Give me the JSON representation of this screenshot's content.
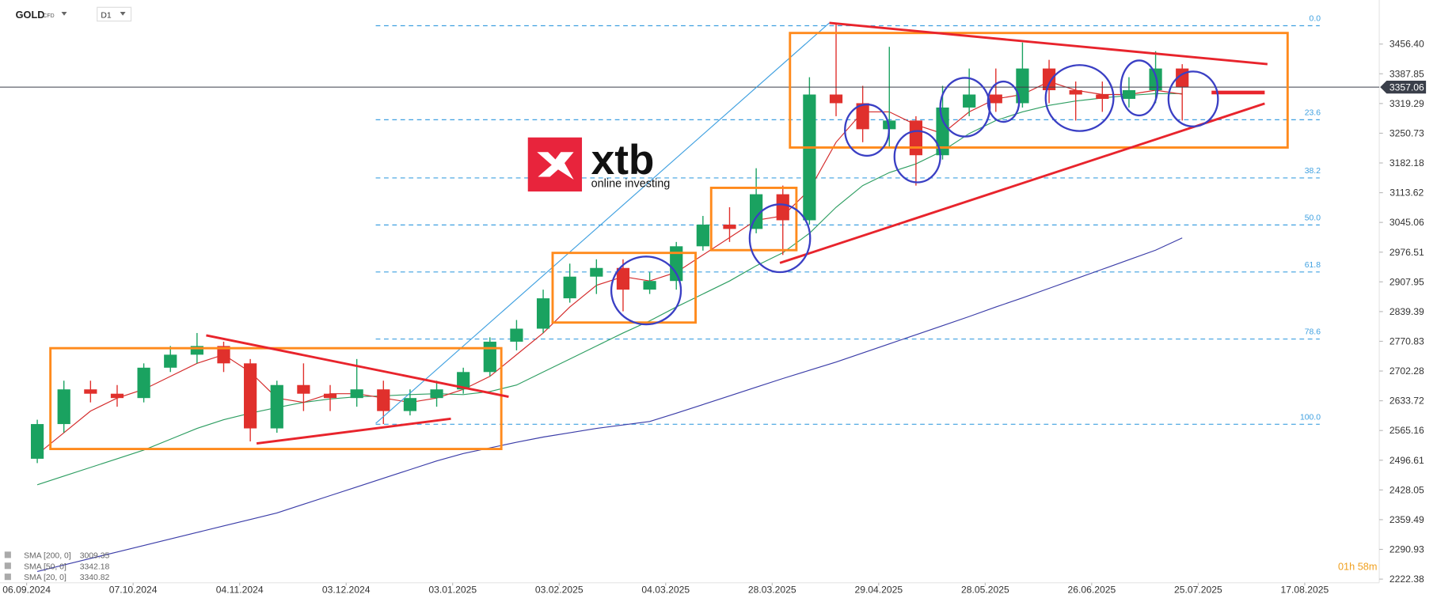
{
  "chart_data": {
    "type": "candlestick",
    "instrument": "GOLD",
    "instrument_type": "CFD",
    "timeframe": "D1",
    "brand": "xtb",
    "brand_tagline": "online investing",
    "countdown": "01h 58m",
    "x": [
      2,
      7,
      12,
      17,
      22,
      27,
      32,
      37,
      42,
      47,
      52,
      57,
      62,
      67,
      72,
      77,
      82,
      87,
      92,
      97,
      102,
      107,
      112,
      117,
      122,
      127,
      132,
      137,
      142,
      147,
      152,
      157,
      162,
      167,
      172,
      177,
      182,
      187,
      192,
      197,
      202,
      207,
      212,
      217
    ],
    "open": [
      2500,
      2580,
      2660,
      2650,
      2640,
      2710,
      2740,
      2760,
      2720,
      2570,
      2670,
      2650,
      2640,
      2660,
      2610,
      2640,
      2660,
      2700,
      2770,
      2800,
      2870,
      2920,
      2940,
      2890,
      2910,
      2990,
      3040,
      3030,
      3110,
      3050,
      3340,
      3320,
      3260,
      3280,
      3200,
      3310,
      3340,
      3320,
      3400,
      3350,
      3340,
      3330,
      3350,
      3400
    ],
    "high": [
      2590,
      2680,
      2680,
      2670,
      2720,
      2760,
      2790,
      2770,
      2730,
      2680,
      2720,
      2670,
      2730,
      2680,
      2660,
      2680,
      2710,
      2780,
      2820,
      2890,
      2950,
      2960,
      2960,
      2930,
      3000,
      3060,
      3080,
      3170,
      3130,
      3380,
      3505,
      3360,
      3450,
      3290,
      3360,
      3400,
      3400,
      3460,
      3420,
      3370,
      3370,
      3380,
      3440,
      3410
    ],
    "low": [
      2490,
      2560,
      2630,
      2620,
      2630,
      2700,
      2720,
      2700,
      2540,
      2560,
      2610,
      2610,
      2620,
      2580,
      2600,
      2620,
      2650,
      2690,
      2750,
      2790,
      2860,
      2880,
      2840,
      2880,
      2890,
      2980,
      3000,
      3020,
      2970,
      3040,
      3290,
      3230,
      3220,
      3130,
      3190,
      3290,
      3300,
      3310,
      3320,
      3280,
      3300,
      3310,
      3320,
      3280
    ],
    "close": [
      2580,
      2660,
      2650,
      2640,
      2710,
      2740,
      2760,
      2720,
      2570,
      2670,
      2650,
      2640,
      2660,
      2610,
      2640,
      2660,
      2700,
      2770,
      2800,
      2870,
      2920,
      2940,
      2890,
      2910,
      2990,
      3040,
      3030,
      3110,
      3050,
      3340,
      3320,
      3260,
      3280,
      3200,
      3310,
      3340,
      3320,
      3400,
      3350,
      3340,
      3330,
      3350,
      3400,
      3357.06
    ],
    "up_color": "#1aa260",
    "down_color": "#e0302c",
    "series": [
      {
        "name": "SMA [200, 0]",
        "color": "#3b3da8",
        "values": [
          2240,
          2255,
          2270,
          2285,
          2300,
          2315,
          2330,
          2345,
          2360,
          2375,
          2395,
          2415,
          2435,
          2455,
          2475,
          2495,
          2512,
          2525,
          2538,
          2550,
          2560,
          2570,
          2578,
          2586,
          2605,
          2625,
          2645,
          2665,
          2685,
          2704,
          2723,
          2744,
          2765,
          2786,
          2807,
          2828,
          2850,
          2871,
          2893,
          2915,
          2937,
          2959,
          2981,
          3009.35
        ]
      },
      {
        "name": "SMA [50, 0]",
        "color": "#2e9e62",
        "values": [
          2440,
          2460,
          2480,
          2500,
          2520,
          2545,
          2570,
          2590,
          2605,
          2618,
          2630,
          2638,
          2643,
          2645,
          2648,
          2650,
          2648,
          2655,
          2670,
          2700,
          2730,
          2760,
          2790,
          2818,
          2850,
          2880,
          2910,
          2945,
          2975,
          3020,
          3080,
          3130,
          3160,
          3180,
          3210,
          3250,
          3280,
          3300,
          3315,
          3325,
          3332,
          3338,
          3342,
          3342.18
        ]
      },
      {
        "name": "SMA [20, 0]",
        "color": "#d42a2a",
        "values": [
          2510,
          2560,
          2610,
          2640,
          2660,
          2690,
          2720,
          2740,
          2700,
          2640,
          2630,
          2650,
          2650,
          2640,
          2630,
          2640,
          2660,
          2690,
          2740,
          2790,
          2850,
          2900,
          2920,
          2910,
          2930,
          2970,
          3010,
          3050,
          3060,
          3120,
          3230,
          3300,
          3300,
          3270,
          3250,
          3300,
          3330,
          3340,
          3370,
          3350,
          3340,
          3340,
          3350,
          3340.82
        ]
      }
    ],
    "fib_levels": [
      {
        "label": "0.0",
        "value": 3498.7
      },
      {
        "label": "23.6",
        "value": 3281.8
      },
      {
        "label": "38.2",
        "value": 3147.6
      },
      {
        "label": "50.0",
        "value": 3039.2
      },
      {
        "label": "61.8",
        "value": 2930.7
      },
      {
        "label": "78.6",
        "value": 2776.2
      },
      {
        "label": "100.0",
        "value": 2579.6
      }
    ],
    "xlim": [
      -5,
      254
    ],
    "xticks": [
      {
        "value": 0,
        "label": "06.09.2024"
      },
      {
        "value": 20,
        "label": "07.10.2024"
      },
      {
        "value": 40,
        "label": "04.11.2024"
      },
      {
        "value": 60,
        "label": "03.12.2024"
      },
      {
        "value": 80,
        "label": "03.01.2025"
      },
      {
        "value": 100,
        "label": "03.02.2025"
      },
      {
        "value": 120,
        "label": "04.03.2025"
      },
      {
        "value": 140,
        "label": "28.03.2025"
      },
      {
        "value": 160,
        "label": "29.04.2025"
      },
      {
        "value": 180,
        "label": "28.05.2025"
      },
      {
        "value": 200,
        "label": "26.06.2025"
      },
      {
        "value": 220,
        "label": "25.07.2025"
      },
      {
        "value": 240,
        "label": "17.08.2025"
      }
    ],
    "ylim": [
      2214,
      3558
    ],
    "yticks": [
      {
        "value": 3456.4,
        "label": "3456.40"
      },
      3387.85,
      3319.29,
      3250.73,
      3182.18,
      3113.62,
      3045.06,
      2976.51,
      2907.95,
      2839.39,
      2770.83,
      2702.28,
      2633.72,
      2565.16,
      2496.61,
      2428.05,
      2359.49,
      2290.93,
      2222.38
    ]
  }
}
